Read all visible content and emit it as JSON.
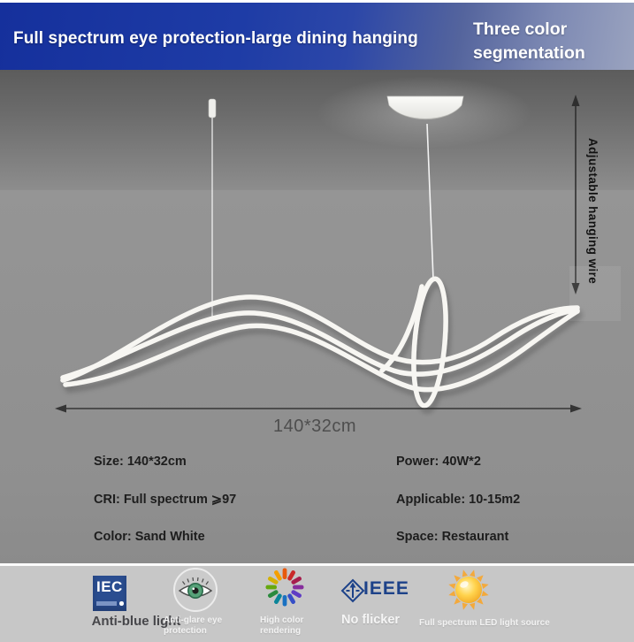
{
  "banner": {
    "title": "Full spectrum eye protection-large dining hanging",
    "badge": {
      "line1": "Three color",
      "line2": "segmentation"
    }
  },
  "annotations": {
    "hanging_wire_label": "Adjustable hanging wire",
    "width_dimension": "140*32cm"
  },
  "specs": {
    "left": [
      "Size: 140*32cm",
      "CRI: Full spectrum ⩾97",
      "Color: Sand White"
    ],
    "right": [
      "Power: 40W*2",
      "Applicable: 10-15m2",
      "Space: Restaurant"
    ]
  },
  "features": [
    {
      "icon": "iec-certification-logo",
      "logo_text": "IEC",
      "label": "Anti-blue light"
    },
    {
      "icon": "eye-protection-icon",
      "label_line1": "Anti-glare eye",
      "label_line2": "protection"
    },
    {
      "icon": "color-wheel-icon",
      "label_line1": "High color",
      "label_line2": "rendering",
      "wheel_colors": [
        "#e8590c",
        "#c92a2a",
        "#a61e4d",
        "#862e9c",
        "#5f3dc4",
        "#364fc7",
        "#1971c2",
        "#0c8599",
        "#2b8a3e",
        "#66a80f",
        "#d4b106",
        "#f59f00"
      ]
    },
    {
      "icon": "ieee-logo",
      "logo_text": "IEEE",
      "label": "No flicker"
    },
    {
      "icon": "sun-icon",
      "label": "Full spectrum LED light source"
    }
  ],
  "colors": {
    "banner_blue_left": "#15309c",
    "banner_blue_right": "#9aa3bf",
    "ceiling_gray": "#5c5c5c",
    "wall_gray": "#919191",
    "footer_gray": "#c7c7c7",
    "lamp_white": "#f7f6f2",
    "arrow_dark": "#353535",
    "spec_text": "#1d1d1d",
    "iec_blue": "#2a4d90",
    "ieee_blue": "#1d4289",
    "sun_ray": "#f3a93c"
  }
}
